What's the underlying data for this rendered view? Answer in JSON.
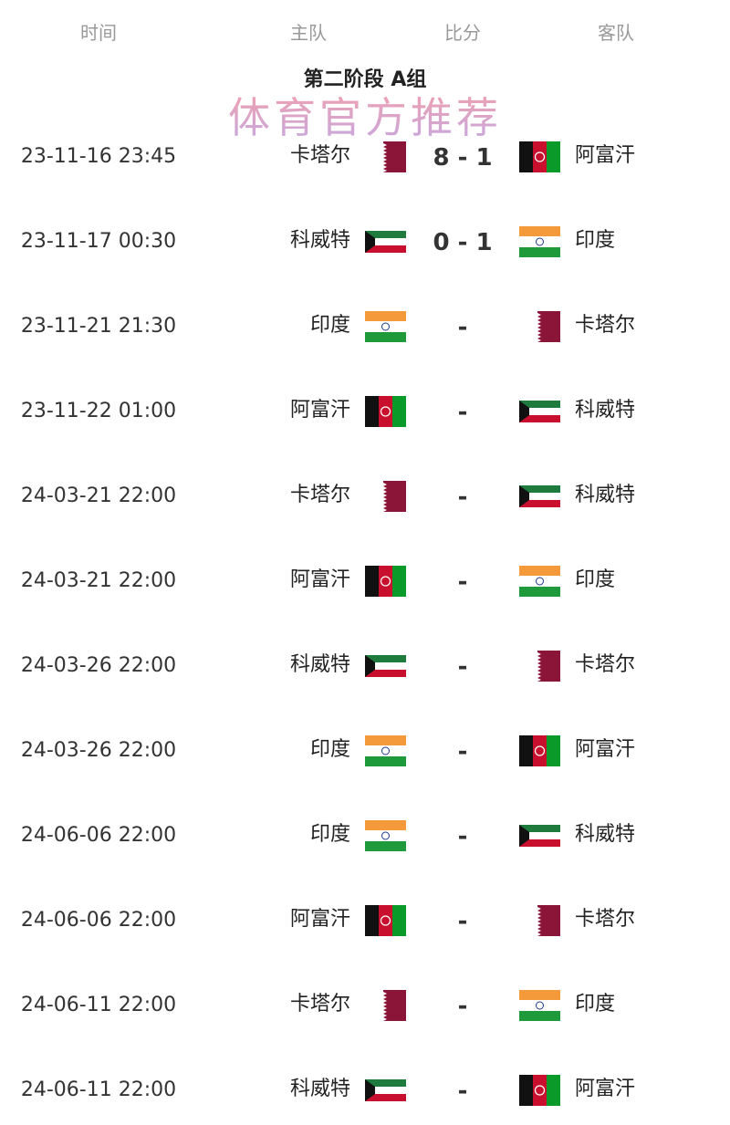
{
  "header": {
    "time": "时间",
    "home": "主队",
    "score": "比分",
    "away": "客队"
  },
  "group_title": "第二阶段 A组",
  "matches": [
    {
      "time": "23-11-16 23:45",
      "home": "卡塔尔",
      "home_flag": "qatar",
      "score": "8 - 1",
      "away": "阿富汗",
      "away_flag": "afghanistan"
    },
    {
      "time": "23-11-17 00:30",
      "home": "科威特",
      "home_flag": "kuwait",
      "score": "0 - 1",
      "away": "印度",
      "away_flag": "india"
    },
    {
      "time": "23-11-21 21:30",
      "home": "印度",
      "home_flag": "india",
      "score": "-",
      "away": "卡塔尔",
      "away_flag": "qatar"
    },
    {
      "time": "23-11-22 01:00",
      "home": "阿富汗",
      "home_flag": "afghanistan",
      "score": "-",
      "away": "科威特",
      "away_flag": "kuwait"
    },
    {
      "time": "24-03-21 22:00",
      "home": "卡塔尔",
      "home_flag": "qatar",
      "score": "-",
      "away": "科威特",
      "away_flag": "kuwait"
    },
    {
      "time": "24-03-21 22:00",
      "home": "阿富汗",
      "home_flag": "afghanistan",
      "score": "-",
      "away": "印度",
      "away_flag": "india"
    },
    {
      "time": "24-03-26 22:00",
      "home": "科威特",
      "home_flag": "kuwait",
      "score": "-",
      "away": "卡塔尔",
      "away_flag": "qatar"
    },
    {
      "time": "24-03-26 22:00",
      "home": "印度",
      "home_flag": "india",
      "score": "-",
      "away": "阿富汗",
      "away_flag": "afghanistan"
    },
    {
      "time": "24-06-06 22:00",
      "home": "印度",
      "home_flag": "india",
      "score": "-",
      "away": "科威特",
      "away_flag": "kuwait"
    },
    {
      "time": "24-06-06 22:00",
      "home": "阿富汗",
      "home_flag": "afghanistan",
      "score": "-",
      "away": "卡塔尔",
      "away_flag": "qatar"
    },
    {
      "time": "24-06-11 22:00",
      "home": "卡塔尔",
      "home_flag": "qatar",
      "score": "-",
      "away": "印度",
      "away_flag": "india"
    },
    {
      "time": "24-06-11 22:00",
      "home": "科威特",
      "home_flag": "kuwait",
      "score": "-",
      "away": "阿富汗",
      "away_flag": "afghanistan"
    }
  ],
  "watermark": "体育官方推荐"
}
